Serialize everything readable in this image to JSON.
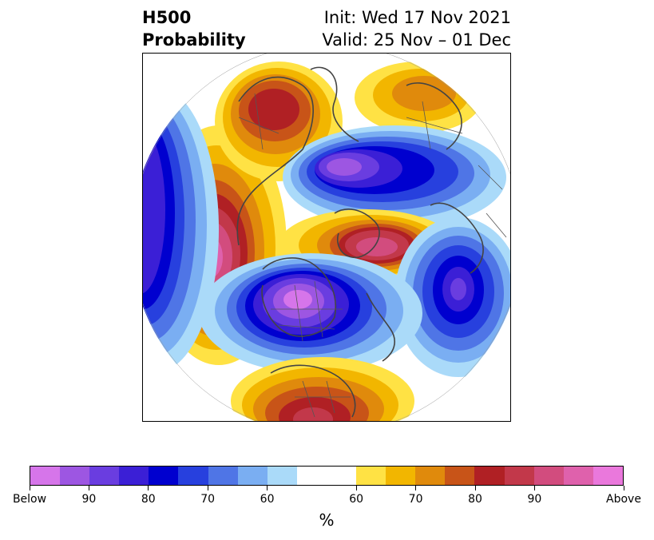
{
  "title": {
    "left_line1": "H500",
    "left_line2": "Probability",
    "right_line1": "Init: Wed 17 Nov 2021",
    "right_line2": "Valid: 25 Nov – 01 Dec"
  },
  "colorbar": {
    "unit": "%",
    "colors": [
      "#d675ea",
      "#9d56e2",
      "#6a3de0",
      "#3b1fd6",
      "#0000cf",
      "#2740de",
      "#4f75e6",
      "#7aaef2",
      "#aadaf9",
      "#ffffff",
      "#ffffff",
      "#ffe244",
      "#f2b600",
      "#e08a0c",
      "#c85418",
      "#b02024",
      "#c2384a",
      "#d24c7e",
      "#df61ac",
      "#ea78dc"
    ],
    "tick_labels": [
      "Below",
      "90",
      "80",
      "70",
      "60",
      "60",
      "70",
      "80",
      "90",
      "Above"
    ]
  },
  "map": {
    "projection": "north-polar-stereographic",
    "field": "500 hPa height probability anomaly"
  }
}
